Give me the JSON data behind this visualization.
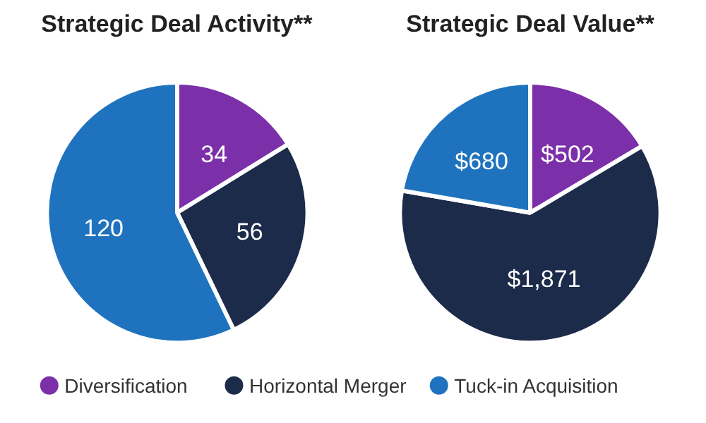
{
  "chart_data": [
    {
      "type": "pie",
      "title": "Strategic Deal Activity**",
      "categories": [
        "Diversification",
        "Horizontal Merger",
        "Tuck-in Acquisition"
      ],
      "values": [
        34,
        56,
        120
      ],
      "colors": [
        "#7b2fa8",
        "#1c2b4a",
        "#1f73be"
      ],
      "data_labels": true,
      "legend": "bottom"
    },
    {
      "type": "pie",
      "title": "Strategic Deal Value**",
      "categories": [
        null,
        null,
        null
      ],
      "values": [
        502,
        1871,
        680
      ],
      "colors": [
        "#7b2fa8",
        "#1c2b4a",
        "#1f73be"
      ],
      "value_labels": [
        "$502",
        "$1,871",
        "$680"
      ]
    }
  ]
}
